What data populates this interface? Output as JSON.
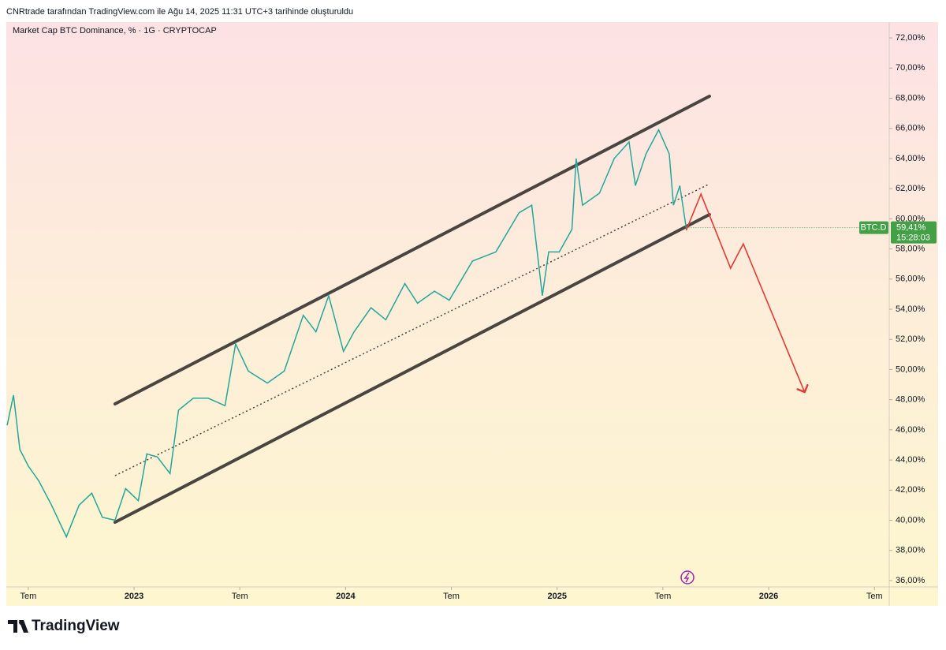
{
  "header": "CNRtrade tarafından TradingView.com ile Ağu 14, 2025 11:31 UTC+3 tarihinde oluşturuldu",
  "footer_logo": "TradingView",
  "chart_data": {
    "type": "line",
    "title": "Market Cap BTC Dominance, % · 1G · CRYPTOCAP",
    "x": [
      2022.4,
      2022.43,
      2022.46,
      2022.5,
      2022.55,
      2022.61,
      2022.68,
      2022.74,
      2022.8,
      2022.85,
      2022.91,
      2022.96,
      2023.02,
      2023.06,
      2023.11,
      2023.17,
      2023.21,
      2023.28,
      2023.35,
      2023.43,
      2023.48,
      2023.54,
      2023.63,
      2023.71,
      2023.8,
      2023.86,
      2023.92,
      2023.99,
      2024.04,
      2024.12,
      2024.19,
      2024.28,
      2024.34,
      2024.42,
      2024.49,
      2024.6,
      2024.71,
      2024.82,
      2024.88,
      2024.93,
      2024.96,
      2025.01,
      2025.07,
      2025.09,
      2025.12,
      2025.2,
      2025.27,
      2025.34,
      2025.37,
      2025.42,
      2025.48,
      2025.53,
      2025.55,
      2025.58,
      2025.61
    ],
    "series": [
      {
        "name": "BTC.D",
        "color": "#26a69a",
        "values": [
          46.3,
          48.3,
          44.7,
          43.6,
          42.6,
          41.0,
          38.9,
          41.0,
          41.8,
          40.2,
          40.0,
          42.1,
          41.3,
          44.4,
          44.2,
          43.1,
          47.3,
          48.1,
          48.1,
          47.6,
          51.7,
          49.9,
          49.1,
          49.9,
          53.6,
          52.5,
          54.9,
          51.2,
          52.5,
          54.1,
          53.3,
          55.7,
          54.4,
          55.2,
          54.6,
          57.2,
          57.8,
          60.4,
          60.9,
          54.9,
          57.8,
          57.8,
          59.3,
          64.0,
          60.9,
          61.7,
          64.0,
          65.1,
          62.2,
          64.3,
          65.9,
          64.3,
          60.9,
          62.2,
          59.41
        ]
      }
    ],
    "last_label": {
      "symbol": "BTC.D",
      "value": 59.41,
      "label": "59,41%",
      "countdown": "15:28:03",
      "color": "#43a047"
    },
    "drawings": [
      {
        "style": "solid",
        "color": "#4a4540",
        "x": [
          2022.91,
          2025.72
        ],
        "y": [
          47.72,
          68.13
        ]
      },
      {
        "style": "solid",
        "color": "#4a4540",
        "x": [
          2022.91,
          2025.72
        ],
        "y": [
          39.87,
          60.28
        ]
      },
      {
        "style": "dotted",
        "color": "#4a4540",
        "x": [
          2022.91,
          2025.72
        ],
        "y": [
          42.96,
          62.31
        ]
      },
      {
        "style": "arrow",
        "color": "#e53935",
        "x": [
          2025.61,
          2025.68,
          2025.82,
          2025.88,
          2026.17
        ],
        "y": [
          59.23,
          61.64,
          56.72,
          58.34,
          48.5
        ]
      }
    ],
    "xlim": [
      2022.396,
      2026.57
    ],
    "xticks": [
      {
        "value": 2022.5,
        "label": "Tem"
      },
      2023,
      {
        "value": 2023.5,
        "label": "Tem"
      },
      2024,
      {
        "value": 2024.5,
        "label": "Tem"
      },
      2025,
      {
        "value": 2025.5,
        "label": "Tem"
      },
      2026,
      {
        "value": 2026.5,
        "label": "Tem"
      }
    ],
    "ylim": [
      35.58,
      73.05
    ],
    "yticks": [
      {
        "value": 36,
        "label": "36,00%"
      },
      {
        "value": 38,
        "label": "38,00%"
      },
      {
        "value": 40,
        "label": "40,00%"
      },
      {
        "value": 42,
        "label": "42,00%"
      },
      {
        "value": 44,
        "label": "44,00%"
      },
      {
        "value": 46,
        "label": "46,00%"
      },
      {
        "value": 48,
        "label": "48,00%"
      },
      {
        "value": 50,
        "label": "50,00%"
      },
      {
        "value": 52,
        "label": "52,00%"
      },
      {
        "value": 54,
        "label": "54,00%"
      },
      {
        "value": 56,
        "label": "56,00%"
      },
      {
        "value": 58,
        "label": "58,00%"
      },
      {
        "value": 60,
        "label": "60,00%"
      },
      {
        "value": 62,
        "label": "62,00%"
      },
      {
        "value": 64,
        "label": "64,00%"
      },
      {
        "value": 66,
        "label": "66,00%"
      },
      {
        "value": 68,
        "label": "68,00%"
      },
      {
        "value": 70,
        "label": "70,00%"
      },
      {
        "value": 72,
        "label": "72,00%"
      }
    ]
  }
}
